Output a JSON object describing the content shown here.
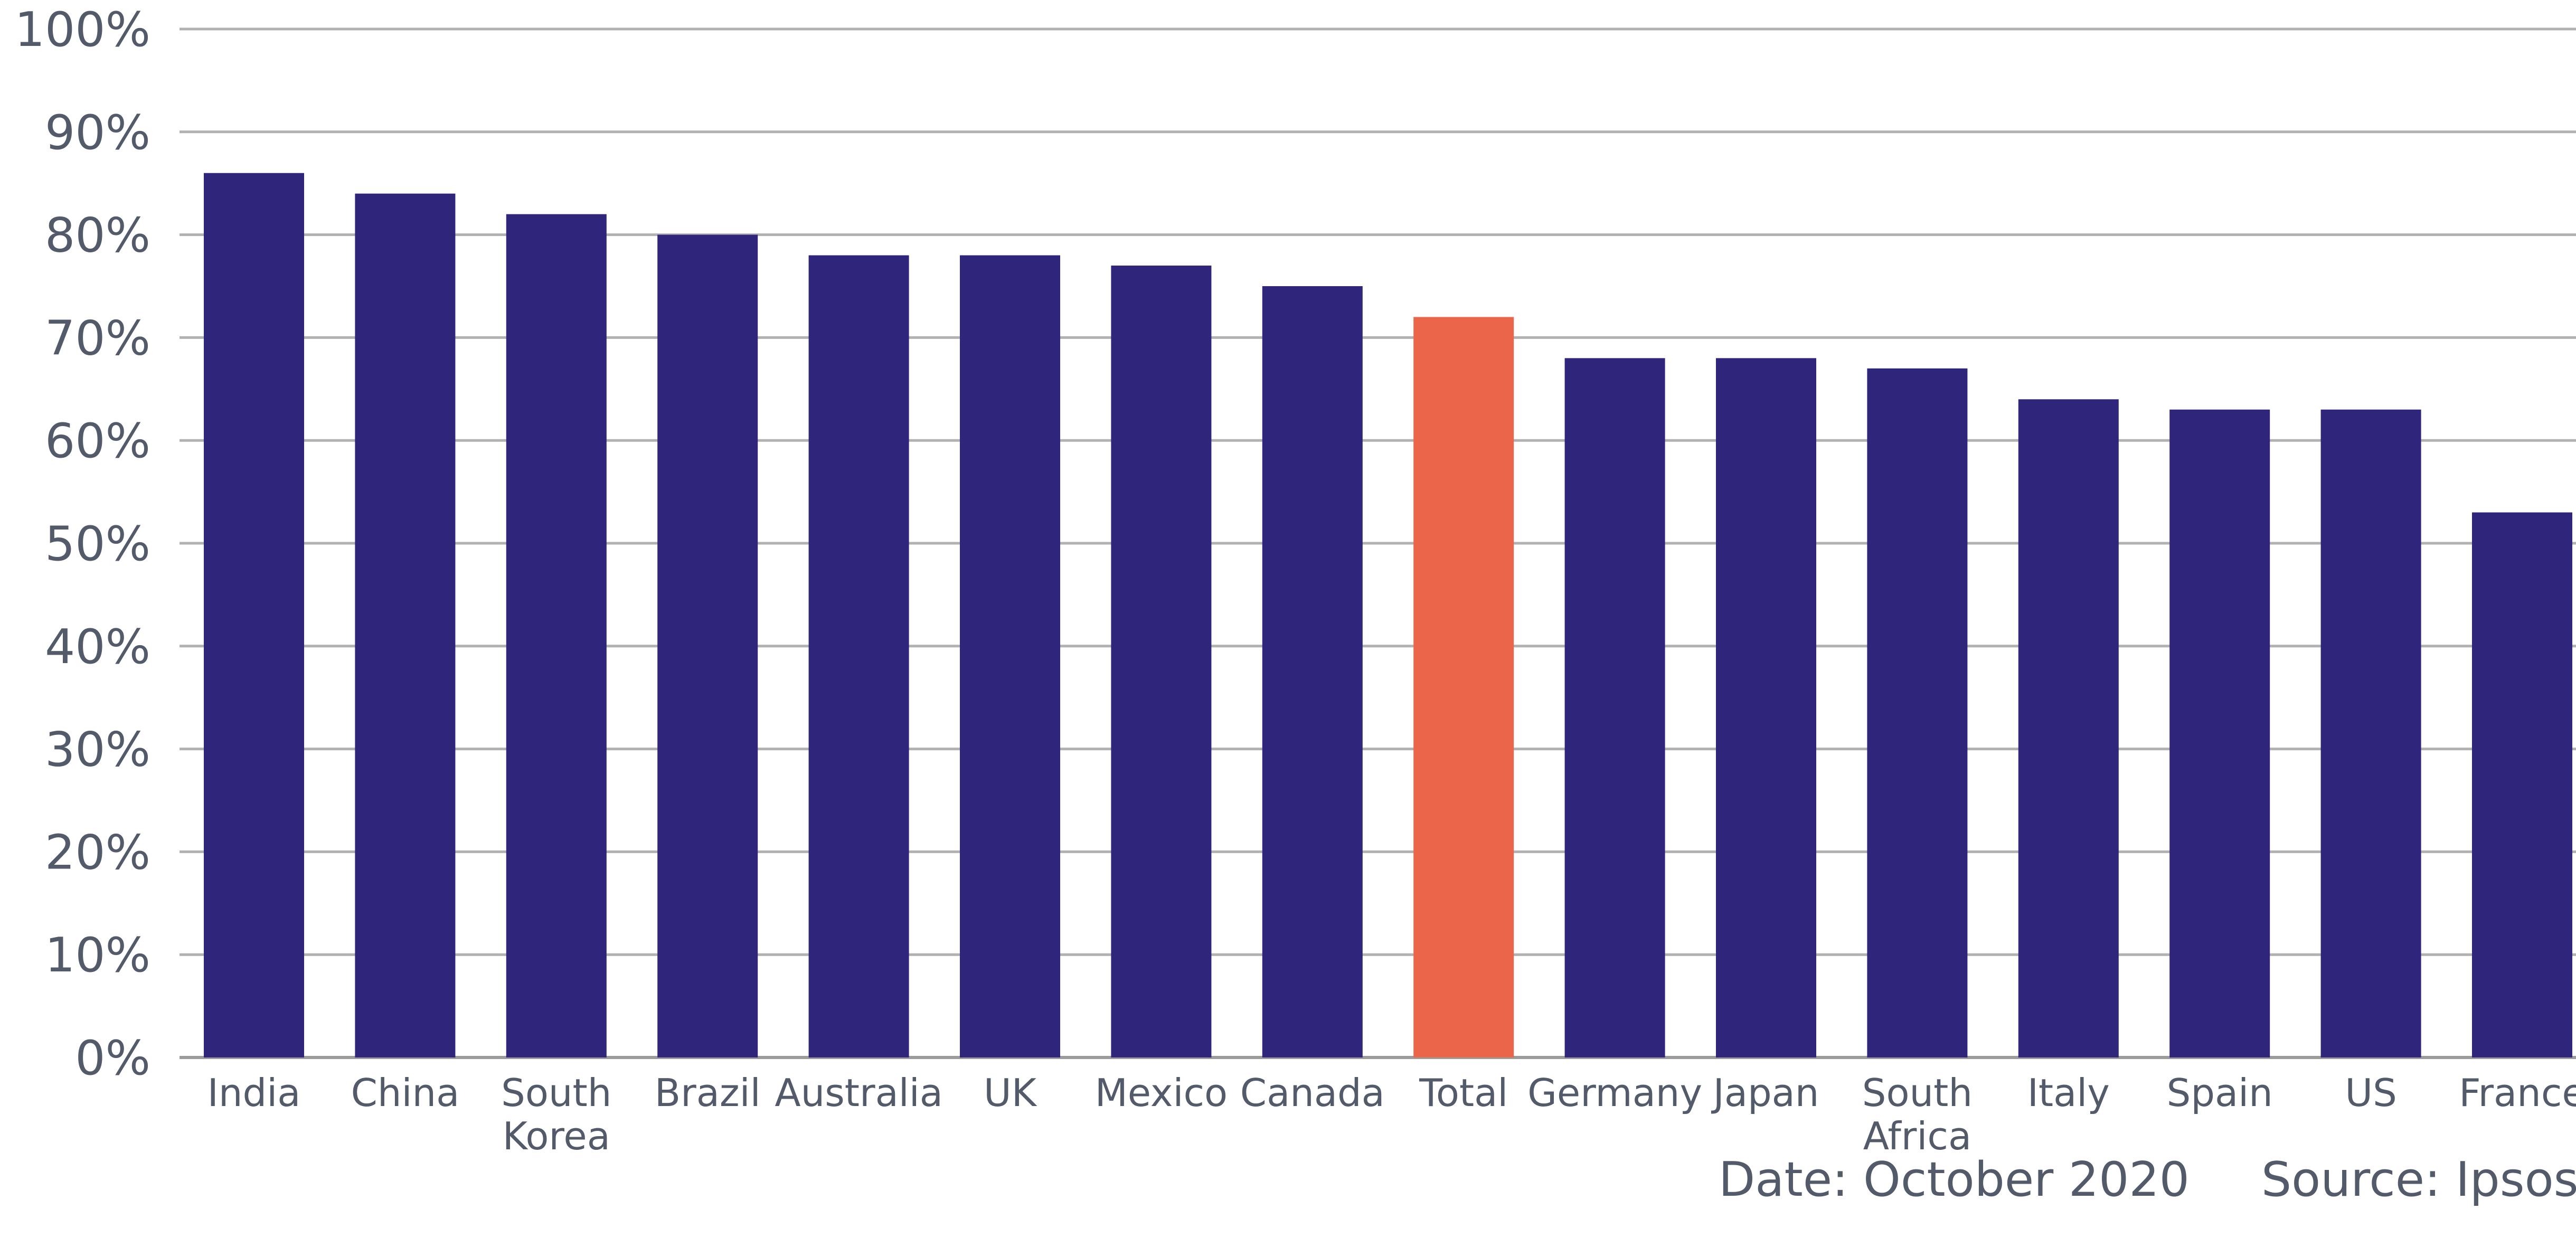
{
  "chart_data": {
    "type": "bar",
    "categories": [
      "India",
      "China",
      "South Korea",
      "Brazil",
      "Australia",
      "UK",
      "Mexico",
      "Canada",
      "Total",
      "Germany",
      "Japan",
      "South Africa",
      "Italy",
      "Spain",
      "US",
      "France"
    ],
    "category_label_lines": [
      [
        "India"
      ],
      [
        "China"
      ],
      [
        "South",
        "Korea"
      ],
      [
        "Brazil"
      ],
      [
        "Australia"
      ],
      [
        "UK"
      ],
      [
        "Mexico"
      ],
      [
        "Canada"
      ],
      [
        "Total"
      ],
      [
        "Germany"
      ],
      [
        "Japan"
      ],
      [
        "South",
        "Africa"
      ],
      [
        "Italy"
      ],
      [
        "Spain"
      ],
      [
        "US"
      ],
      [
        "France"
      ]
    ],
    "values": [
      0.86,
      0.84,
      0.82,
      0.8,
      0.78,
      0.78,
      0.77,
      0.75,
      0.72,
      0.68,
      0.68,
      0.67,
      0.64,
      0.63,
      0.63,
      0.53
    ],
    "highlight_category": "Total",
    "ylim": [
      0,
      1
    ],
    "yticks": [
      0,
      0.1,
      0.2,
      0.3,
      0.4,
      0.5,
      0.6,
      0.7,
      0.8,
      0.9,
      1.0
    ],
    "ytick_labels": [
      "0%",
      "10%",
      "20%",
      "30%",
      "40%",
      "50%",
      "60%",
      "70%",
      "80%",
      "90%",
      "100%"
    ],
    "grid": true,
    "title": "",
    "xlabel": "",
    "ylabel": ""
  },
  "footer": {
    "date": "Date: October 2020",
    "source": "Source: Ipsos"
  },
  "colors": {
    "bar": "#2f257b",
    "highlight": "#ea654a",
    "grid": "#b1b1b1",
    "axis": "#9b9b9b",
    "text": "#535a69",
    "background": "#ffffff"
  }
}
